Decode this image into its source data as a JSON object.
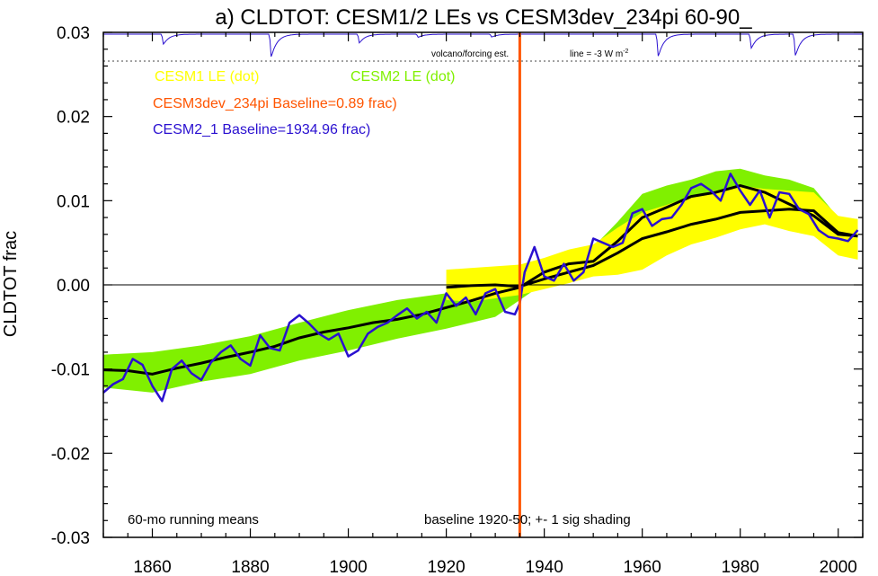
{
  "chart_data": {
    "type": "line",
    "title": "a) CLDTOT: CESM1/2 LEs vs CESM3dev_234pi 60-90_",
    "ylabel": "CLDTOT frac",
    "xlabel": "",
    "xlim": [
      1850,
      2005
    ],
    "ylim": [
      -0.03,
      0.03
    ],
    "x_ticks": [
      1860,
      1880,
      1900,
      1920,
      1940,
      1960,
      1980,
      2000
    ],
    "y_ticks": [
      {
        "v": 0.03,
        "label": "0.03"
      },
      {
        "v": 0.02,
        "label": "0.02"
      },
      {
        "v": 0.01,
        "label": "0.01"
      },
      {
        "v": 0.0,
        "label": "0.00"
      },
      {
        "v": -0.01,
        "label": "-0.01"
      },
      {
        "v": -0.02,
        "label": "-0.02"
      },
      {
        "v": -0.03,
        "label": "-0.03"
      }
    ],
    "marker_year": 1935,
    "legend": {
      "cesm1": "CESM1 LE (dot)",
      "cesm2": "CESM2 LE (dot)",
      "cesm3": "CESM3dev_234pi Baseline=0.89 frac)",
      "cesm21": "CESM2_1 Baseline=1934.96 frac)"
    },
    "annotations": {
      "volcano": "volcano/forcing est.",
      "line": "line = -3 W m",
      "line_sup": "-2",
      "running": "60-mo running means",
      "baseline": "baseline 1920-50; +- 1 sig shading"
    },
    "colors": {
      "cesm1": "#ffff00",
      "cesm2": "#80f000",
      "cesm3": "#ff5500",
      "cesm21": "#2a10d0",
      "ensmean": "#000000"
    },
    "volcano_dips": [
      {
        "year": 1862,
        "depth": 0.0032
      },
      {
        "year": 1884,
        "depth": 0.0072
      },
      {
        "year": 1902,
        "depth": 0.0028
      },
      {
        "year": 1914,
        "depth": 0.001
      },
      {
        "year": 1929,
        "depth": 0.0009
      },
      {
        "year": 1963,
        "depth": 0.007
      },
      {
        "year": 1982,
        "depth": 0.0045
      },
      {
        "year": 1991,
        "depth": 0.0068
      }
    ],
    "series": [
      {
        "name": "CESM2 LE (dot)",
        "kind": "band",
        "x": [
          1850,
          1860,
          1870,
          1880,
          1890,
          1900,
          1910,
          1920,
          1930,
          1935,
          1940,
          1950,
          1955,
          1960,
          1965,
          1970,
          1975,
          1980,
          1985,
          1990,
          1995,
          2000,
          2004
        ],
        "upper": [
          -0.0083,
          -0.008,
          -0.0072,
          -0.0061,
          -0.0045,
          -0.003,
          -0.0018,
          -0.001,
          0.0007,
          0.0017,
          0.0028,
          0.0045,
          0.0075,
          0.0108,
          0.0118,
          0.0125,
          0.0135,
          0.0138,
          0.013,
          0.0125,
          0.0115,
          0.008,
          0.0078
        ],
        "lower": [
          -0.0122,
          -0.0128,
          -0.0115,
          -0.0106,
          -0.009,
          -0.0078,
          -0.0064,
          -0.0052,
          -0.0038,
          -0.0018,
          0.0002,
          0.0018,
          0.004,
          0.007,
          0.0082,
          0.009,
          0.0098,
          0.01,
          0.009,
          0.008,
          0.0075,
          0.0045,
          0.004
        ]
      },
      {
        "name": "CESM1 LE (dot)",
        "kind": "band",
        "x": [
          1920,
          1925,
          1930,
          1935,
          1940,
          1945,
          1950,
          1955,
          1960,
          1965,
          1970,
          1975,
          1980,
          1985,
          1990,
          1995,
          2000,
          2004
        ],
        "upper": [
          0.0018,
          0.002,
          0.0022,
          0.0024,
          0.0032,
          0.0042,
          0.0048,
          0.0068,
          0.0086,
          0.0095,
          0.0105,
          0.0112,
          0.0118,
          0.0114,
          0.0112,
          0.011,
          0.0082,
          0.0078
        ],
        "lower": [
          -0.0018,
          -0.002,
          -0.0016,
          -0.0012,
          -0.0005,
          0.0002,
          0.001,
          0.0012,
          0.0018,
          0.0035,
          0.0048,
          0.0056,
          0.0066,
          0.0072,
          0.0064,
          0.0058,
          0.0035,
          0.003
        ]
      },
      {
        "name": "CESM2 LE mean",
        "kind": "mean",
        "x": [
          1850,
          1855,
          1860,
          1865,
          1870,
          1875,
          1880,
          1885,
          1890,
          1895,
          1900,
          1905,
          1910,
          1915,
          1920,
          1925,
          1930,
          1935,
          1940,
          1945,
          1950,
          1955,
          1960,
          1965,
          1970,
          1975,
          1980,
          1985,
          1990,
          1995,
          2000,
          2004
        ],
        "y": [
          -0.0101,
          -0.0102,
          -0.0106,
          -0.0099,
          -0.0093,
          -0.0086,
          -0.008,
          -0.0073,
          -0.0063,
          -0.0056,
          -0.0051,
          -0.0045,
          -0.0041,
          -0.0035,
          -0.0027,
          -0.0019,
          -0.001,
          -0.0003,
          0.0015,
          0.0025,
          0.0028,
          0.0052,
          0.008,
          0.0092,
          0.0105,
          0.011,
          0.0118,
          0.011,
          0.0096,
          0.0082,
          0.006,
          0.0058
        ]
      },
      {
        "name": "CESM1 LE mean",
        "kind": "mean",
        "x": [
          1920,
          1925,
          1930,
          1935,
          1940,
          1945,
          1950,
          1955,
          1960,
          1965,
          1970,
          1975,
          1980,
          1985,
          1990,
          1995,
          2000,
          2004
        ],
        "y": [
          -0.0003,
          -0.0001,
          0.0,
          -0.0002,
          0.0007,
          0.0015,
          0.0023,
          0.0038,
          0.0055,
          0.0063,
          0.0072,
          0.0078,
          0.0086,
          0.0088,
          0.009,
          0.0088,
          0.0062,
          0.0058
        ]
      },
      {
        "name": "CESM2_1 Baseline=1934.96 frac)",
        "kind": "line",
        "x": [
          1850,
          1852,
          1854,
          1856,
          1858,
          1860,
          1862,
          1864,
          1866,
          1868,
          1870,
          1872,
          1874,
          1876,
          1878,
          1880,
          1882,
          1884,
          1886,
          1888,
          1890,
          1892,
          1894,
          1896,
          1898,
          1900,
          1902,
          1904,
          1906,
          1908,
          1910,
          1912,
          1914,
          1916,
          1918,
          1920,
          1922,
          1924,
          1926,
          1928,
          1930,
          1932,
          1934,
          1935,
          1936,
          1938,
          1940,
          1942,
          1944,
          1946,
          1948,
          1950,
          1952,
          1954,
          1956,
          1958,
          1960,
          1962,
          1964,
          1966,
          1968,
          1970,
          1972,
          1974,
          1976,
          1978,
          1980,
          1982,
          1984,
          1986,
          1988,
          1990,
          1992,
          1994,
          1996,
          1998,
          2000,
          2002,
          2004
        ],
        "y": [
          -0.0128,
          -0.0118,
          -0.0112,
          -0.0088,
          -0.0095,
          -0.012,
          -0.0138,
          -0.01,
          -0.009,
          -0.0105,
          -0.0113,
          -0.0092,
          -0.008,
          -0.0072,
          -0.0088,
          -0.0096,
          -0.006,
          -0.0075,
          -0.0078,
          -0.0045,
          -0.0036,
          -0.0046,
          -0.0058,
          -0.0065,
          -0.0058,
          -0.0085,
          -0.0078,
          -0.0058,
          -0.005,
          -0.0045,
          -0.0036,
          -0.0028,
          -0.004,
          -0.0032,
          -0.0045,
          -0.001,
          -0.0025,
          -0.0015,
          -0.0035,
          -0.001,
          -0.0005,
          -0.0032,
          -0.0035,
          -0.0022,
          0.0015,
          0.0045,
          0.001,
          0.0005,
          0.0025,
          0.0005,
          0.0015,
          0.0055,
          0.005,
          0.0045,
          0.005,
          0.0085,
          0.009,
          0.007,
          0.0078,
          0.008,
          0.0095,
          0.0115,
          0.012,
          0.0112,
          0.01,
          0.0132,
          0.0112,
          0.0095,
          0.0112,
          0.008,
          0.011,
          0.0108,
          0.009,
          0.0084,
          0.0065,
          0.0057,
          0.0055,
          0.0052,
          0.0065
        ]
      },
      {
        "name": "CESM3dev_234pi Baseline=0.89 frac)",
        "kind": "vline",
        "x": [
          1935
        ],
        "y": [
          0
        ]
      }
    ]
  }
}
